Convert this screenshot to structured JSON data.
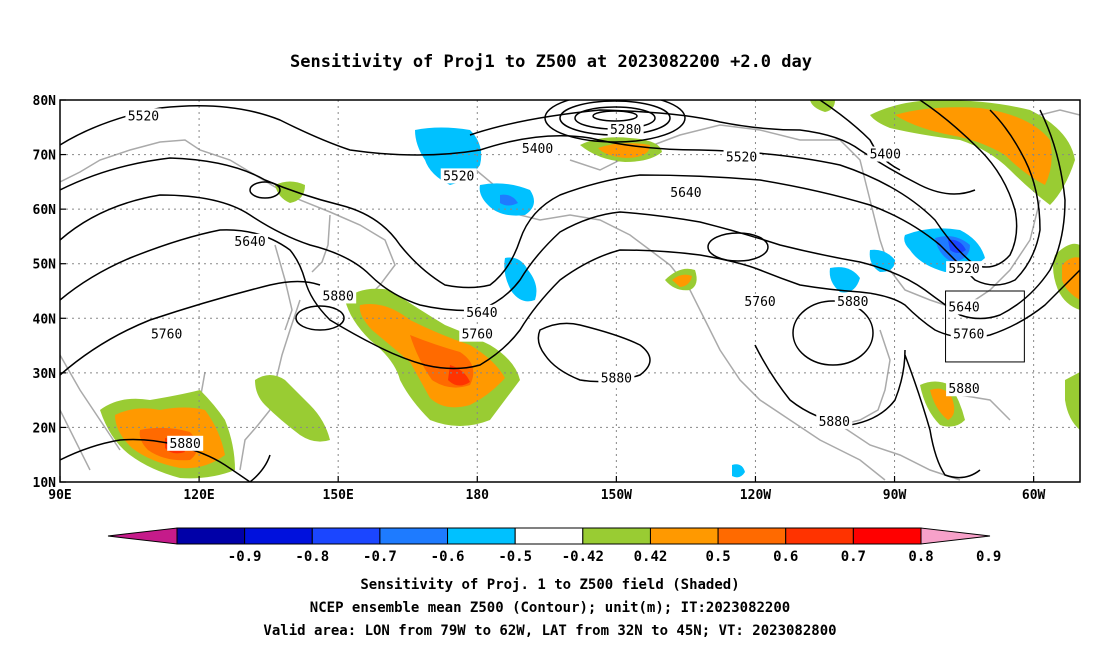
{
  "title": "Sensitivity of Proj1 to Z500 at 2023082200 +2.0 day",
  "map": {
    "lon_ticks": [
      "90E",
      "120E",
      "150E",
      "180",
      "150W",
      "120W",
      "90W",
      "60W"
    ],
    "lon_values": [
      90,
      120,
      150,
      180,
      210,
      240,
      270,
      300
    ],
    "lat_ticks": [
      "80N",
      "70N",
      "60N",
      "50N",
      "40N",
      "30N",
      "20N",
      "10N"
    ],
    "lat_values": [
      80,
      70,
      60,
      50,
      40,
      30,
      20,
      10
    ],
    "lon_range": [
      90,
      310
    ],
    "lat_range": [
      10,
      80
    ],
    "grid": true
  },
  "contour_labels": [
    {
      "text": "5520",
      "lon": 108,
      "lat": 77
    },
    {
      "text": "5400",
      "lon": 193,
      "lat": 71
    },
    {
      "text": "5280",
      "lon": 212,
      "lat": 74.5
    },
    {
      "text": "5520",
      "lon": 176,
      "lat": 66
    },
    {
      "text": "5520",
      "lon": 237,
      "lat": 69.5
    },
    {
      "text": "5400",
      "lon": 268,
      "lat": 70
    },
    {
      "text": "5640",
      "lon": 225,
      "lat": 63
    },
    {
      "text": "5640",
      "lon": 131,
      "lat": 54
    },
    {
      "text": "5880",
      "lon": 150,
      "lat": 44
    },
    {
      "text": "5640",
      "lon": 181,
      "lat": 41
    },
    {
      "text": "5760",
      "lon": 180,
      "lat": 37
    },
    {
      "text": "5760",
      "lon": 113,
      "lat": 37
    },
    {
      "text": "5760",
      "lon": 241,
      "lat": 43
    },
    {
      "text": "5880",
      "lon": 261,
      "lat": 43
    },
    {
      "text": "5520",
      "lon": 285,
      "lat": 49
    },
    {
      "text": "5640",
      "lon": 285,
      "lat": 42
    },
    {
      "text": "5760",
      "lon": 286,
      "lat": 37
    },
    {
      "text": "5880",
      "lon": 210,
      "lat": 29
    },
    {
      "text": "5880",
      "lon": 285,
      "lat": 27
    },
    {
      "text": "5880",
      "lon": 117,
      "lat": 17
    },
    {
      "text": "5880",
      "lon": 257,
      "lat": 21
    }
  ],
  "valid_box": {
    "lon_min": 281,
    "lon_max": 298,
    "lat_min": 32,
    "lat_max": 45
  },
  "colorbar": {
    "labels": [
      "-0.9",
      "-0.8",
      "-0.7",
      "-0.6",
      "-0.5",
      "-0.42",
      "0.42",
      "0.5",
      "0.6",
      "0.7",
      "0.8",
      "0.9"
    ],
    "colors": [
      "#c51b8a",
      "#0000a8",
      "#0011dd",
      "#1b46ff",
      "#1e7bff",
      "#00c1ff",
      "#ffffff",
      "#99cc33",
      "#ff9900",
      "#ff6a00",
      "#ff3300",
      "#ff0000",
      "#f7a1c9"
    ]
  },
  "captions": [
    "Sensitivity of Proj. 1 to Z500 field (Shaded)",
    "NCEP ensemble mean Z500 (Contour); unit(m); IT:2023082200",
    "Valid area: LON from 79W to 62W, LAT from 32N to 45N; VT: 2023082800"
  ]
}
